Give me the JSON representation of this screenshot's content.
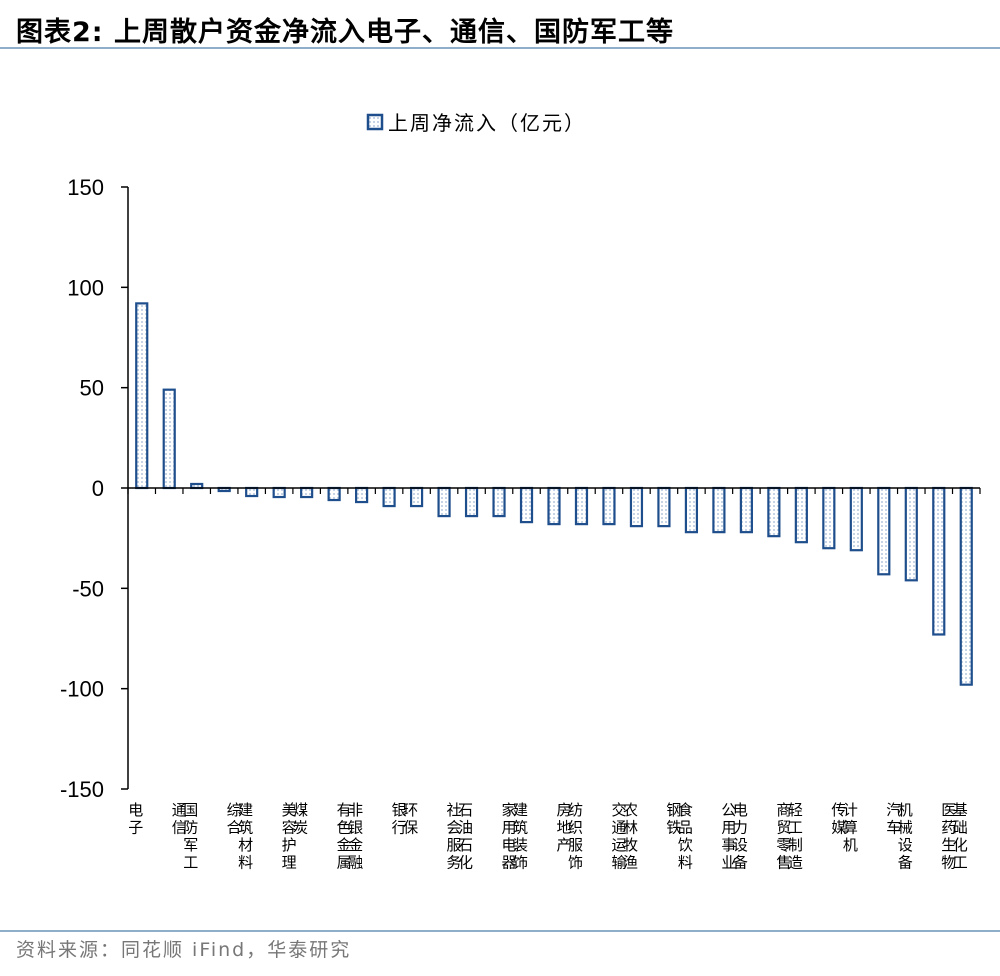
{
  "header": {
    "title": "图表2:   上周散户资金净流入电子、通信、国防军工等"
  },
  "footer": {
    "source": "资料来源：同花顺 iFind，华泰研究"
  },
  "colors": {
    "bar_edge": "#1f4e8c",
    "bar_fill": "#ffffff",
    "bar_dots": "#9fb6d4",
    "rule": "#8faec9"
  },
  "chart_data": {
    "type": "bar",
    "legend": {
      "label": "上周净流入（亿元）",
      "position": "top-center"
    },
    "ylim": [
      -150,
      150
    ],
    "yticks": [
      150,
      100,
      50,
      0,
      -50,
      -100,
      -150
    ],
    "categories": [
      "电子",
      "通信",
      "国防军工",
      "综合",
      "建筑材料",
      "美容护理",
      "煤炭",
      "有色金属",
      "非银金融",
      "银行",
      "环保",
      "社会服务",
      "石油石化",
      "家用电器",
      "建筑装饰",
      "房地产",
      "纺织服饰",
      "交通运输",
      "农林牧渔",
      "钢铁",
      "食品饮料",
      "公用事业",
      "电力设备",
      "商贸零售",
      "轻工制造",
      "传媒",
      "计算机",
      "汽车",
      "机械设备",
      "医药生物",
      "基础化工"
    ],
    "values": [
      92,
      49,
      2,
      -1.5,
      -4,
      -4.5,
      -4.5,
      -6,
      -7,
      -9,
      -9,
      -14,
      -14,
      -14,
      -17,
      -18,
      -18,
      -18,
      -19,
      -19,
      -22,
      -22,
      -22,
      -24,
      -27,
      -30,
      -31,
      -43,
      -46,
      -73,
      -98
    ]
  }
}
